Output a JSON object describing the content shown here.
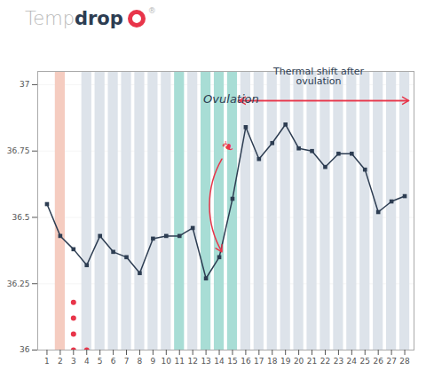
{
  "chart_data": {
    "type": "line",
    "logo": {
      "parts": [
        {
          "text": "Temp",
          "color": "#b8b8b8",
          "weight": "light"
        },
        {
          "text": "drop",
          "color": "#2d3d52",
          "weight": "bold"
        }
      ],
      "ring_color": "#e8354a",
      "suffix": "®",
      "suffix_color": "#b8b8b8"
    },
    "x": [
      1,
      2,
      3,
      4,
      5,
      6,
      7,
      8,
      9,
      10,
      11,
      12,
      13,
      14,
      15,
      16,
      17,
      18,
      19,
      20,
      21,
      22,
      23,
      24,
      25,
      26,
      27,
      28
    ],
    "series": [
      {
        "values": [
          36.55,
          36.43,
          36.38,
          36.32,
          36.43,
          36.37,
          36.35,
          36.29,
          36.42,
          36.43,
          36.43,
          36.46,
          36.27,
          36.35,
          36.57,
          36.84,
          36.72,
          36.78,
          36.85,
          36.76,
          36.75,
          36.69,
          36.74,
          36.74,
          36.68,
          36.52,
          36.56,
          36.58
        ],
        "color": "#2d3d52",
        "marker": "square"
      }
    ],
    "bands": [
      {
        "days": [
          4,
          5,
          6,
          7,
          8,
          9,
          10,
          12,
          16,
          17,
          18,
          19,
          20,
          21,
          22,
          23,
          24,
          25,
          26,
          27,
          28
        ],
        "color": "#dde3ea",
        "bottom": 36.0,
        "top": 37.05
      },
      {
        "days": [
          2
        ],
        "color": "#f5ccc0",
        "bottom": 36.0,
        "top": 37.05
      },
      {
        "days": [
          11,
          13,
          14,
          15
        ],
        "color": "#a8ddd5",
        "bottom": 36.0,
        "top": 37.05
      }
    ],
    "dots": {
      "x": [
        3,
        3,
        3,
        3,
        4
      ],
      "y": [
        36.18,
        36.12,
        36.06,
        36.0,
        36.0
      ],
      "color": "#e8354a"
    },
    "annotations": [
      {
        "text": "Ovulation",
        "x": 12.8,
        "y": 36.93,
        "color": "#2d3d52",
        "align": "left",
        "style": "italic"
      },
      {
        "text": "❧",
        "x": 14.45,
        "y": 36.75,
        "color": "#e8354a",
        "align": "center"
      },
      {
        "text": "Thermal shift after\novulation",
        "x": 21.5,
        "y": 37.0,
        "color": "#2d3d52",
        "align": "center"
      }
    ],
    "arrows": [
      {
        "x1": 14.2,
        "y1": 36.72,
        "x2": 14.2,
        "y2": 36.37,
        "color": "#e8354a",
        "kind": "curved"
      },
      {
        "x1": 15.5,
        "y1": 36.94,
        "x2": 28.3,
        "y2": 36.94,
        "color": "#e8354a",
        "kind": "double"
      }
    ],
    "xlim": [
      0.3,
      28.7
    ],
    "xticks": [
      1,
      2,
      3,
      4,
      5,
      6,
      7,
      8,
      9,
      10,
      11,
      12,
      13,
      14,
      15,
      16,
      17,
      18,
      19,
      20,
      21,
      22,
      23,
      24,
      25,
      26,
      27,
      28
    ],
    "ylim": [
      36.0,
      37.05
    ],
    "yticks": [
      36,
      36.25,
      36.5,
      36.75,
      37
    ],
    "grid": true
  }
}
